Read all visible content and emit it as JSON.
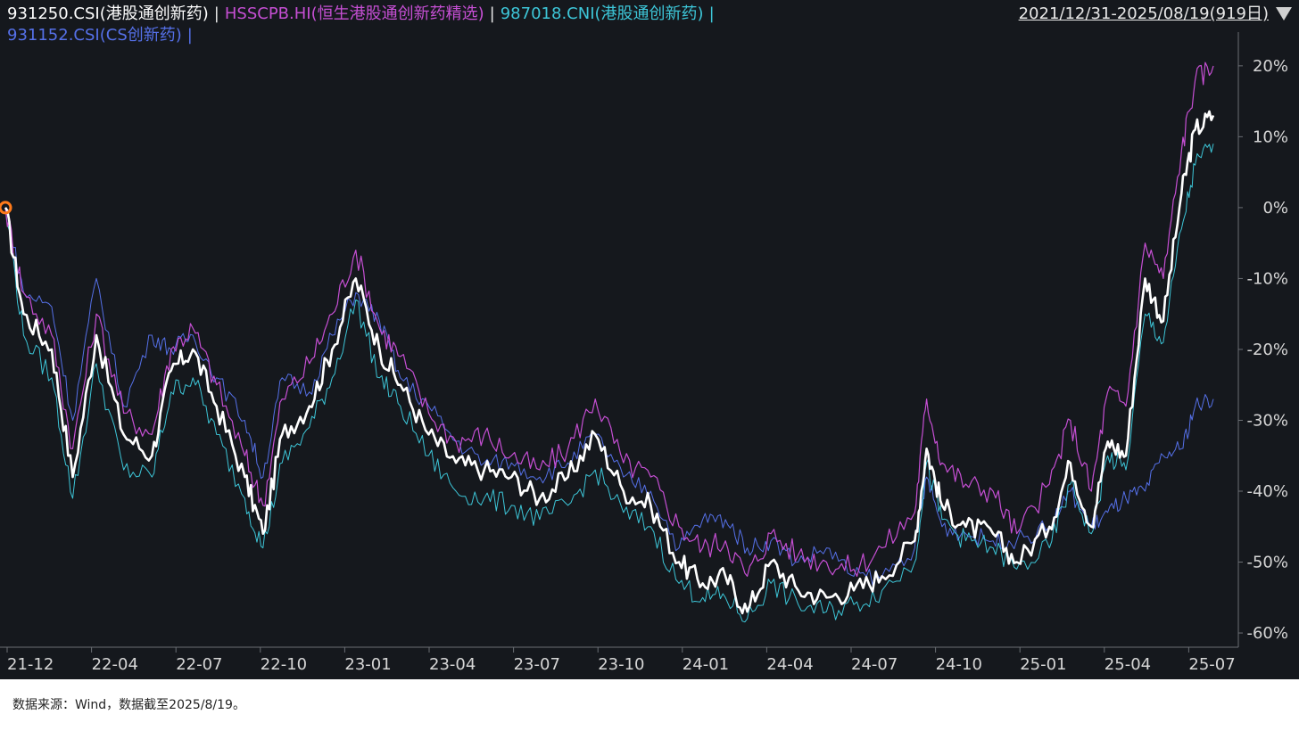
{
  "legend": [
    {
      "code": "931250.CSI(港股通创新药)",
      "color": "#ffffff"
    },
    {
      "code": "HSSCPB.HI(恒生港股通创新药精选)",
      "color": "#c64fd4"
    },
    {
      "code": "987018.CNI(港股通创新药)",
      "color": "#3dc6d8"
    },
    {
      "code": "931152.CSI(CS创新药)",
      "color": "#5570e8"
    }
  ],
  "separator": "|",
  "date_range": "2021/12/31-2025/08/19(919日)",
  "source_note": "数据来源：Wind，数据截至2025/8/19。",
  "colors": {
    "background": "#15181d",
    "marker": "#ff7a1a",
    "axis": "#6a6e74"
  },
  "chart_data": {
    "type": "line",
    "y_unit": "%",
    "ylim": [
      -61,
      23
    ],
    "yticks": [
      20,
      10,
      0,
      -10,
      -20,
      -30,
      -40,
      -50,
      -60
    ],
    "ytick_labels": [
      "20%",
      "10%",
      "0%",
      "-10%",
      "-20%",
      "-30%",
      "-40%",
      "-50%",
      "-60%"
    ],
    "xtick_labels": [
      "21-12",
      "22-04",
      "22-07",
      "22-10",
      "23-01",
      "23-04",
      "23-07",
      "23-10",
      "24-01",
      "24-04",
      "24-07",
      "24-10",
      "25-01",
      "25-04",
      "25-07"
    ],
    "x": [
      "2021-12-31",
      "2022-01-20",
      "2022-02-20",
      "2022-03-15",
      "2022-04-10",
      "2022-05-10",
      "2022-06-10",
      "2022-07-01",
      "2022-07-25",
      "2022-08-20",
      "2022-09-20",
      "2022-10-10",
      "2022-10-31",
      "2022-11-30",
      "2022-12-25",
      "2023-01-20",
      "2023-02-15",
      "2023-03-10",
      "2023-04-10",
      "2023-05-10",
      "2023-06-10",
      "2023-07-10",
      "2023-08-10",
      "2023-09-10",
      "2023-10-10",
      "2023-11-10",
      "2023-12-10",
      "2024-01-10",
      "2024-02-05",
      "2024-03-01",
      "2024-03-25",
      "2024-04-20",
      "2024-05-20",
      "2024-06-20",
      "2024-07-20",
      "2024-08-20",
      "2024-09-25",
      "2024-10-08",
      "2024-10-25",
      "2024-11-20",
      "2024-12-20",
      "2025-01-15",
      "2025-02-20",
      "2025-03-15",
      "2025-04-07",
      "2025-04-25",
      "2025-05-15",
      "2025-06-05",
      "2025-06-25",
      "2025-07-15",
      "2025-07-30",
      "2025-08-19"
    ],
    "series": [
      {
        "name": "931250.CSI(港股通创新药)",
        "color": "#ffffff",
        "width": 2.6,
        "values": [
          0,
          -15,
          -20,
          -38,
          -18,
          -32,
          -35,
          -23,
          -20,
          -28,
          -38,
          -46,
          -32,
          -28,
          -20,
          -10,
          -20,
          -25,
          -32,
          -36,
          -37,
          -38,
          -41,
          -38,
          -32,
          -40,
          -42,
          -50,
          -53,
          -52,
          -57,
          -50,
          -54,
          -55,
          -54,
          -52,
          -47,
          -34,
          -42,
          -45,
          -46,
          -50,
          -45,
          -36,
          -45,
          -33,
          -35,
          -10,
          -16,
          2,
          11,
          13
        ]
      },
      {
        "name": "HSSCPB.HI(恒生港股通创新药精选)",
        "color": "#c64fd4",
        "width": 1.2,
        "values": [
          0,
          -12,
          -18,
          -34,
          -15,
          -29,
          -32,
          -20,
          -17,
          -25,
          -35,
          -42,
          -27,
          -22,
          -15,
          -6,
          -17,
          -21,
          -29,
          -33,
          -32,
          -35,
          -37,
          -34,
          -27,
          -36,
          -38,
          -45,
          -48,
          -47,
          -52,
          -46,
          -49,
          -50,
          -51,
          -48,
          -43,
          -27,
          -36,
          -39,
          -40,
          -46,
          -39,
          -30,
          -40,
          -26,
          -28,
          -5,
          -10,
          8,
          18,
          20
        ]
      },
      {
        "name": "987018.CNI(港股通创新药)",
        "color": "#3dc6d8",
        "width": 1.0,
        "values": [
          0,
          -18,
          -24,
          -41,
          -22,
          -37,
          -38,
          -26,
          -24,
          -32,
          -41,
          -48,
          -36,
          -31,
          -24,
          -13,
          -24,
          -28,
          -35,
          -40,
          -41,
          -42,
          -44,
          -42,
          -37,
          -43,
          -45,
          -53,
          -55,
          -55,
          -58,
          -53,
          -56,
          -57,
          -56,
          -54,
          -50,
          -36,
          -44,
          -47,
          -48,
          -51,
          -48,
          -39,
          -46,
          -35,
          -37,
          -15,
          -19,
          -3,
          6,
          9
        ]
      },
      {
        "name": "931152.CSI(CS创新药)",
        "color": "#5570e8",
        "width": 1.0,
        "values": [
          0,
          -12,
          -14,
          -30,
          -10,
          -28,
          -18,
          -20,
          -18,
          -24,
          -30,
          -38,
          -24,
          -26,
          -18,
          -12,
          -16,
          -24,
          -28,
          -33,
          -36,
          -36,
          -38,
          -36,
          -32,
          -38,
          -40,
          -48,
          -44,
          -44,
          -48,
          -47,
          -50,
          -48,
          -52,
          -52,
          -48,
          -38,
          -45,
          -46,
          -47,
          -47,
          -45,
          -40,
          -45,
          -43,
          -41,
          -40,
          -35,
          -34,
          -28,
          -27
        ]
      }
    ]
  }
}
